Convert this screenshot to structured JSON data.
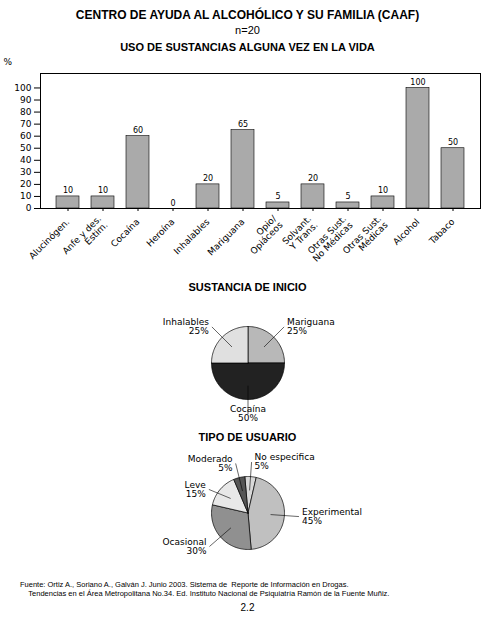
{
  "title": "CENTRO DE AYUDA AL ALCOHÓLICO Y SU FAMILIA (CAAF)",
  "subtitle": "n=20",
  "annotations": [
    "Fuente: Ortiz A., Soriano A., Galván J. Junio 2003. Sistema de  Reporte de Información en Drogas.",
    "    Tendencias en el Área Metropolitana No.34. Ed. Instituto Nacional de Psiquiatría Ramón de la Fuente Muñiz.",
    "2.2"
  ],
  "chart_data": [
    {
      "type": "bar",
      "title": "USO DE SUSTANCIAS ALGUNA VEZ EN LA VIDA",
      "ylabel": "%",
      "categories": [
        "Alucinógen.",
        "Anfe y des.\nEstim.",
        "Cocaína",
        "Heroína",
        "Inhalables",
        "Mariguana",
        "Opio/\nOpiáceos",
        "Solvant.\nY Trans.",
        "Otras Sust.\nNo Médicas",
        "Otras Sust.\nMédicas",
        "Alcohol",
        "Tabaco"
      ],
      "values": [
        10,
        10,
        60,
        0,
        20,
        65,
        5,
        20,
        5,
        10,
        100,
        50
      ],
      "color": "#aaaaaa",
      "ylim": [
        0,
        112
      ],
      "yticks": [
        0,
        10,
        20,
        30,
        40,
        50,
        60,
        70,
        80,
        90,
        100
      ],
      "data_labels": true,
      "grid": false
    },
    {
      "type": "pie",
      "title": "SUSTANCIA DE INICIO",
      "categories": [
        "Mariguana",
        "Cocaína",
        "Inhalables"
      ],
      "values": [
        25,
        50,
        25
      ],
      "value_labels": [
        "25%",
        "50%",
        "25%"
      ],
      "colors": [
        "#b8b8b8",
        "#222222",
        "#e0e0e0"
      ],
      "data_labels": true
    },
    {
      "type": "pie",
      "title": "TIPO DE USUARIO",
      "categories": [
        "No especifica",
        "Experimental",
        "Ocasional",
        "Leve",
        "Moderado"
      ],
      "values": [
        5,
        45,
        30,
        15,
        5
      ],
      "value_labels": [
        "5%",
        "45%",
        "30%",
        "15%",
        "5%"
      ],
      "colors": [
        "#d8d8d8",
        "#c0c0c0",
        "#909090",
        "#e8e8e8",
        "#555555"
      ],
      "data_labels": true
    }
  ]
}
